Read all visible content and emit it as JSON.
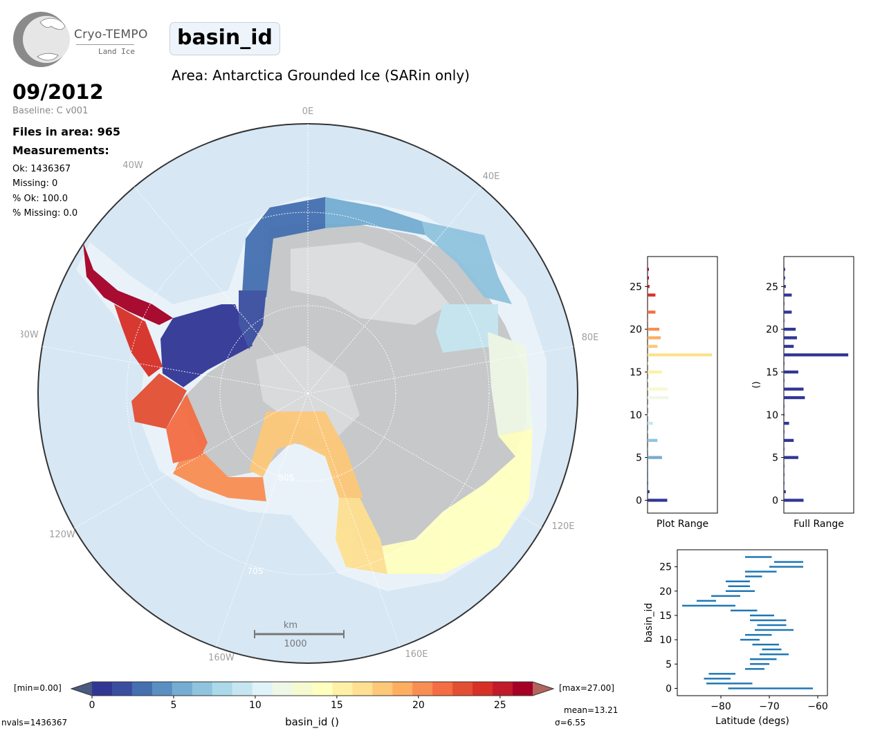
{
  "header": {
    "logo_name": "Cryo-TEMPO",
    "logo_sub": "Land Ice",
    "parameter": "basin_id",
    "area": "Area: Antarctica Grounded Ice (SARin only)",
    "date": "09/2012",
    "baseline": "Baseline: C v001",
    "files": "Files in area: 965",
    "measurements_title": "Measurements:",
    "ok": "Ok: 1436367",
    "missing": "Missing: 0",
    "pct_ok": "% Ok: 100.0",
    "pct_missing": "% Missing: 0.0"
  },
  "map": {
    "lon_labels": [
      "0E",
      "40E",
      "80E",
      "120E",
      "160E",
      "160W",
      "120W",
      "80W",
      "40W"
    ],
    "lat_labels": [
      "80S",
      "70S"
    ],
    "scale_title": "km",
    "scale_value": "1000",
    "colors": {
      "ocean": "#d7e7f4",
      "ice": "#c9cbcd",
      "shelf": "#eaf2f9"
    }
  },
  "colorbar": {
    "min_label": "[min=0.00]",
    "max_label": "[max=27.00]",
    "ticks": [
      "0",
      "5",
      "10",
      "15",
      "20",
      "25"
    ],
    "label": "basin_id ()",
    "nvals": "nvals=1436367",
    "mean": "mean=13.21",
    "sigma": "σ=6.55",
    "colors": [
      "#313695",
      "#3a4ea0",
      "#4470b0",
      "#5b8fc2",
      "#74add1",
      "#90c3de",
      "#abd9e9",
      "#c5e6f0",
      "#e0f3f8",
      "#eff8e6",
      "#f5fad1",
      "#ffffbf",
      "#fef0a7",
      "#fee090",
      "#fdc878",
      "#fdae61",
      "#f88e52",
      "#f46d43",
      "#e34f33",
      "#d73027",
      "#c11a28",
      "#a50026"
    ],
    "under_color": "#4a5a80",
    "over_color": "#b2645d"
  },
  "chart_data": [
    {
      "type": "bar",
      "orientation": "horizontal",
      "xlabel": "Plot Range",
      "ylabel": "",
      "ylim": [
        -1.5,
        28.5
      ],
      "yticks": [
        "0",
        "5",
        "10",
        "15",
        "20",
        "25"
      ],
      "categories": [
        0,
        1,
        2,
        3,
        4,
        5,
        6,
        7,
        8,
        9,
        10,
        11,
        12,
        13,
        14,
        15,
        16,
        17,
        18,
        19,
        20,
        21,
        22,
        23,
        24,
        25,
        26,
        27
      ],
      "values": [
        0.3,
        0.03,
        0.01,
        0.01,
        0.01,
        0.22,
        0.01,
        0.15,
        0.01,
        0.08,
        0.01,
        0.01,
        0.32,
        0.3,
        0.01,
        0.22,
        0.01,
        0.98,
        0.15,
        0.2,
        0.18,
        0.01,
        0.12,
        0.01,
        0.12,
        0.03,
        0.02,
        0.02
      ]
    },
    {
      "type": "bar",
      "orientation": "horizontal",
      "xlabel": "Full Range",
      "ylabel": "()",
      "ylim": [
        -1.5,
        28.5
      ],
      "yticks": [
        "0",
        "5",
        "10",
        "15",
        "20",
        "25"
      ],
      "categories": [
        0,
        1,
        2,
        3,
        4,
        5,
        6,
        7,
        8,
        9,
        10,
        11,
        12,
        13,
        14,
        15,
        16,
        17,
        18,
        19,
        20,
        21,
        22,
        23,
        24,
        25,
        26,
        27
      ],
      "values": [
        0.3,
        0.03,
        0.01,
        0.01,
        0.01,
        0.22,
        0.01,
        0.15,
        0.01,
        0.08,
        0.01,
        0.01,
        0.32,
        0.3,
        0.01,
        0.22,
        0.01,
        0.98,
        0.15,
        0.2,
        0.18,
        0.01,
        0.12,
        0.01,
        0.12,
        0.03,
        0.02,
        0.02
      ]
    },
    {
      "type": "range",
      "xlabel": "Latitude (degs)",
      "ylabel": "basin_id",
      "xlim": [
        -89,
        -58
      ],
      "ylim": [
        -1.5,
        28.5
      ],
      "xticks": [
        "−80",
        "−70",
        "−60"
      ],
      "yticks": [
        "0",
        "5",
        "10",
        "15",
        "20",
        "25"
      ],
      "series": [
        {
          "basin": 0,
          "min": -78.5,
          "max": -61
        },
        {
          "basin": 1,
          "min": -83,
          "max": -73.5
        },
        {
          "basin": 2,
          "min": -83.5,
          "max": -78
        },
        {
          "basin": 3,
          "min": -82.5,
          "max": -77
        },
        {
          "basin": 4,
          "min": -75,
          "max": -71
        },
        {
          "basin": 5,
          "min": -74,
          "max": -70
        },
        {
          "basin": 6,
          "min": -74,
          "max": -68.5
        },
        {
          "basin": 7,
          "min": -72,
          "max": -66
        },
        {
          "basin": 8,
          "min": -71.5,
          "max": -67.5
        },
        {
          "basin": 9,
          "min": -73.5,
          "max": -68
        },
        {
          "basin": 10,
          "min": -76,
          "max": -72
        },
        {
          "basin": 11,
          "min": -75,
          "max": -69.5
        },
        {
          "basin": 12,
          "min": -73,
          "max": -65
        },
        {
          "basin": 13,
          "min": -72.5,
          "max": -66.5
        },
        {
          "basin": 14,
          "min": -74,
          "max": -66.5
        },
        {
          "basin": 15,
          "min": -74,
          "max": -69
        },
        {
          "basin": 16,
          "min": -78,
          "max": -72.5
        },
        {
          "basin": 17,
          "min": -88,
          "max": -77
        },
        {
          "basin": 18,
          "min": -85,
          "max": -81
        },
        {
          "basin": 19,
          "min": -82,
          "max": -76
        },
        {
          "basin": 20,
          "min": -79,
          "max": -73
        },
        {
          "basin": 21,
          "min": -78.5,
          "max": -74
        },
        {
          "basin": 22,
          "min": -79,
          "max": -74
        },
        {
          "basin": 23,
          "min": -75,
          "max": -71.5
        },
        {
          "basin": 24,
          "min": -75,
          "max": -68.5
        },
        {
          "basin": 25,
          "min": -70,
          "max": -63
        },
        {
          "basin": 26,
          "min": -69,
          "max": -63
        },
        {
          "basin": 27,
          "min": -75,
          "max": -69.5
        }
      ]
    }
  ]
}
